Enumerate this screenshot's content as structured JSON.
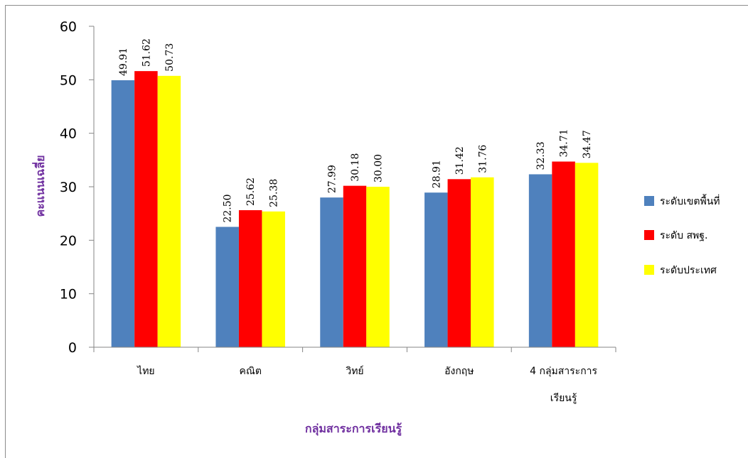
{
  "chart_data": {
    "type": "bar",
    "categories": [
      "ไทย",
      "คณิต",
      "วิทย์",
      "อังกฤษ",
      "4 กลุ่มสาระการ\nเรียนรู้"
    ],
    "series": [
      {
        "name": "ระดับเขตพื้นที่",
        "color": "#4f81bd",
        "values": [
          49.91,
          22.5,
          27.99,
          28.91,
          32.33
        ],
        "labels": [
          "49.91",
          "22.50",
          "27.99",
          "28.91",
          "32.33"
        ]
      },
      {
        "name": "ระดับ สพฐ.",
        "color": "#ff0000",
        "values": [
          51.62,
          25.62,
          30.18,
          31.42,
          34.71
        ],
        "labels": [
          "51.62",
          "25.62",
          "30.18",
          "31.42",
          "34.71"
        ]
      },
      {
        "name": "ระดับประเทศ",
        "color": "#ffff00",
        "values": [
          50.73,
          25.38,
          30.0,
          31.76,
          34.47
        ],
        "labels": [
          "50.73",
          "25.38",
          "30.00",
          "31.76",
          "34.47"
        ]
      }
    ],
    "xlabel": "กลุ่มสาระการเรียนรู้",
    "ylabel": "คะแนนเฉลี่ย",
    "ylim": [
      0,
      60
    ],
    "yticks": [
      0,
      10,
      20,
      30,
      40,
      50,
      60
    ],
    "grid": false,
    "legend_position": "right"
  }
}
